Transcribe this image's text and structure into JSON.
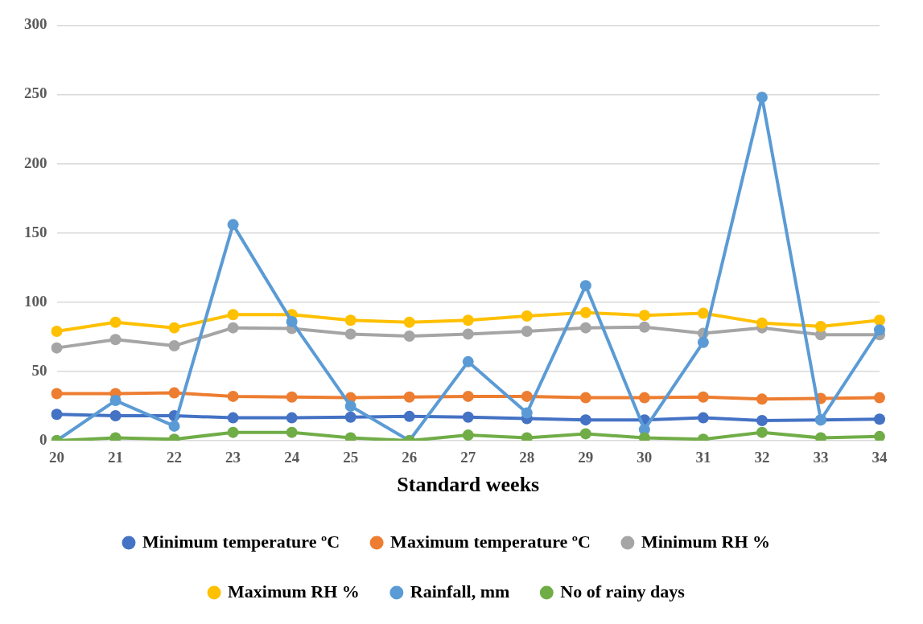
{
  "chart_data": {
    "type": "line",
    "xlabel": "Standard weeks",
    "categories": [
      "20",
      "21",
      "22",
      "23",
      "24",
      "25",
      "26",
      "27",
      "28",
      "29",
      "30",
      "31",
      "32",
      "33",
      "34"
    ],
    "series": [
      {
        "name": "Minimum temperature ºC",
        "color": "#4472c4",
        "values": [
          19,
          18,
          18,
          16.5,
          16.5,
          17,
          17.5,
          17,
          16,
          15,
          15,
          16.5,
          14.5,
          15,
          15.5
        ]
      },
      {
        "name": "Maximum temperature ºC",
        "color": "#ed7d31",
        "values": [
          34,
          34,
          34.5,
          32,
          31.5,
          31,
          31.5,
          32,
          32,
          31,
          31,
          31.5,
          30,
          30.5,
          31
        ]
      },
      {
        "name": "Minimum RH %",
        "color": "#a5a5a5",
        "values": [
          67,
          73,
          68.5,
          81.5,
          81,
          77,
          75.5,
          77,
          79,
          81.5,
          82,
          77.5,
          81.5,
          76.5,
          76.5
        ]
      },
      {
        "name": "Maximum RH %",
        "color": "#ffc000",
        "values": [
          79,
          85.5,
          81.5,
          91,
          91,
          87,
          85.5,
          87,
          90,
          92.5,
          90.5,
          92,
          85,
          82.5,
          87
        ]
      },
      {
        "name": "Rainfall, mm",
        "color": "#5b9bd5",
        "values": [
          0,
          29,
          10.5,
          156,
          86,
          25,
          0,
          57,
          20,
          112,
          8,
          71,
          248,
          15,
          80
        ]
      },
      {
        "name": "No of rainy days",
        "color": "#70ad47",
        "values": [
          0,
          2,
          1,
          6,
          6,
          2,
          0,
          4,
          2,
          5,
          2,
          1,
          6,
          2,
          3
        ]
      }
    ],
    "ylim": [
      0,
      300
    ],
    "yticks": [
      0,
      50,
      100,
      150,
      200,
      250,
      300
    ],
    "grid": "y",
    "legend": "bottom",
    "marker": "circle",
    "line_style": "solid"
  }
}
